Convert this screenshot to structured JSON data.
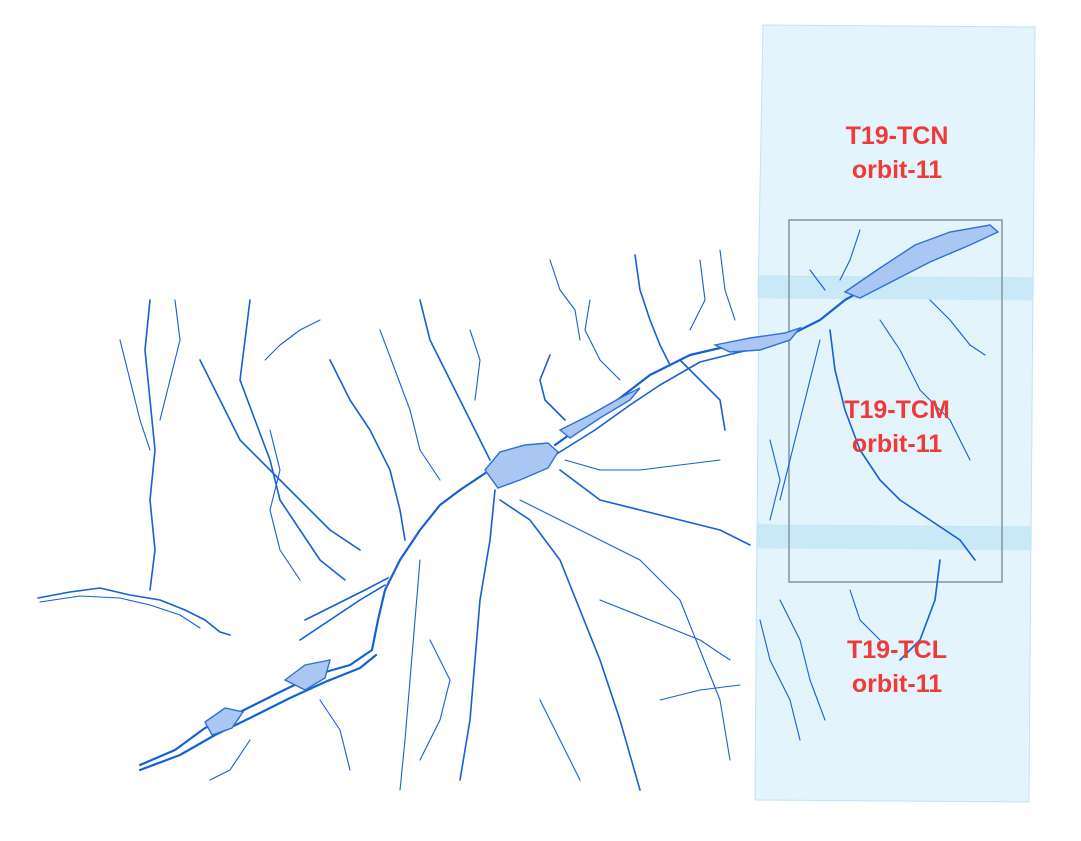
{
  "tiles": [
    {
      "id": "T19-TCN",
      "orbit": "orbit-11"
    },
    {
      "id": "T19-TCM",
      "orbit": "orbit-11"
    },
    {
      "id": "T19-TCL",
      "orbit": "orbit-11"
    }
  ],
  "colors": {
    "river": "#1560d4",
    "lake_fill": "#a9c7f2",
    "tile_fill": "#d9f0fb",
    "label": "#f03a3a",
    "region_outline": "#8a9aa3"
  }
}
